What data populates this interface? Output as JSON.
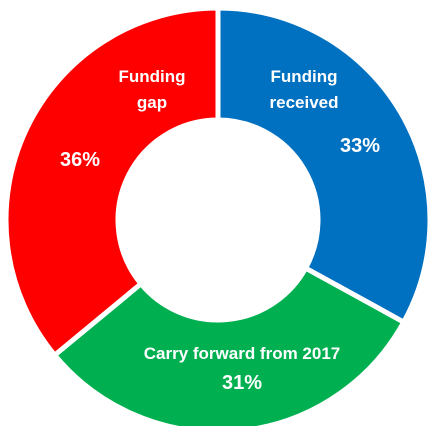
{
  "chart_data": {
    "type": "pie",
    "variant": "donut",
    "title": "",
    "slices": [
      {
        "label_lines": [
          "Funding",
          "received"
        ],
        "value": 33,
        "percent_label": "33%",
        "color": "#0070C0"
      },
      {
        "label_lines": [
          "Carry forward from 2017"
        ],
        "value": 31,
        "percent_label": "31%",
        "color": "#00B050"
      },
      {
        "label_lines": [
          "Funding",
          "gap"
        ],
        "value": 36,
        "percent_label": "36%",
        "color": "#FF0000"
      }
    ],
    "slice_border_color": "#ffffff",
    "background_color": "#ffffff"
  }
}
